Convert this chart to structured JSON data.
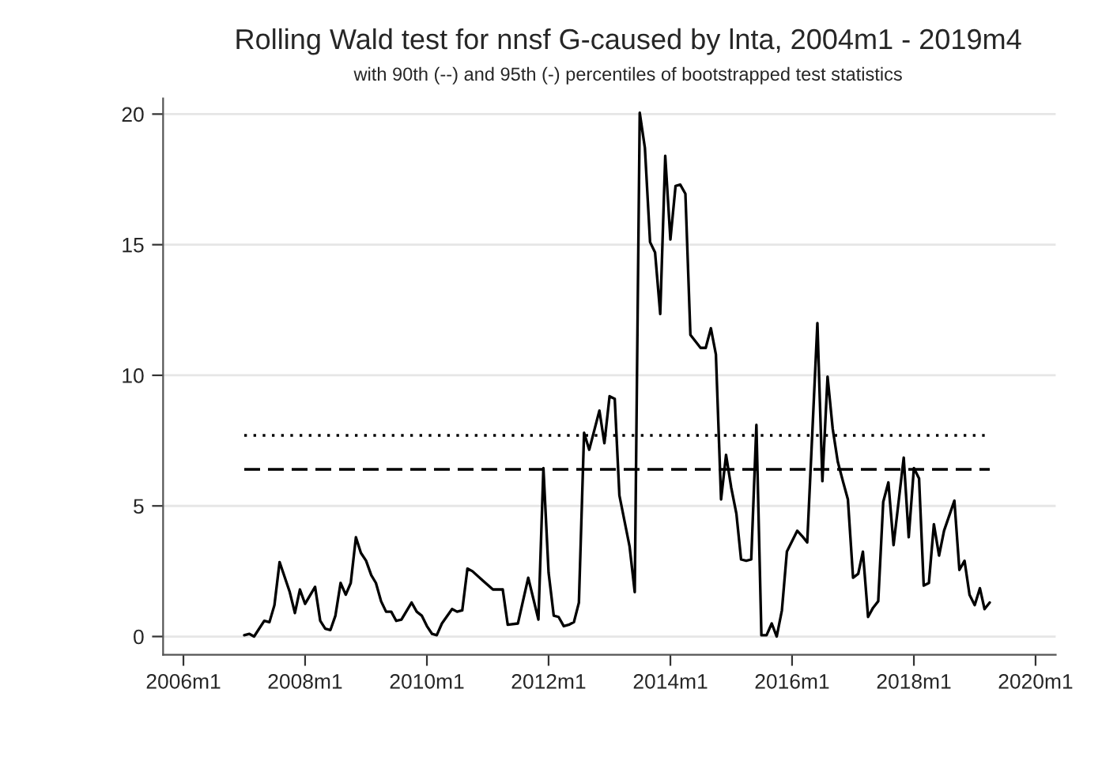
{
  "chart_data": {
    "type": "line",
    "title": "Rolling Wald test for nnsf G-caused by lnta, 2004m1 - 2019m4",
    "subtitle": "with 90th (--) and 95th (-) percentiles of bootstrapped test statistics",
    "x": [
      "2007-01",
      "2007-02",
      "2007-03",
      "2007-05",
      "2007-06",
      "2007-07",
      "2007-08",
      "2007-10",
      "2007-11",
      "2007-12",
      "2008-01",
      "2008-03",
      "2008-04",
      "2008-05",
      "2008-06",
      "2008-07",
      "2008-08",
      "2008-09",
      "2008-10",
      "2008-11",
      "2008-12",
      "2009-01",
      "2009-02",
      "2009-03",
      "2009-04",
      "2009-05",
      "2009-06",
      "2009-07",
      "2009-08",
      "2009-10",
      "2009-11",
      "2009-12",
      "2010-01",
      "2010-02",
      "2010-03",
      "2010-04",
      "2010-06",
      "2010-07",
      "2010-08",
      "2010-09",
      "2010-10",
      "2010-12",
      "2011-02",
      "2011-04",
      "2011-05",
      "2011-07",
      "2011-09",
      "2011-11",
      "2011-12",
      "2012-01",
      "2012-02",
      "2012-03",
      "2012-04",
      "2012-05",
      "2012-06",
      "2012-07",
      "2012-08",
      "2012-09",
      "2012-11",
      "2012-12",
      "2013-01",
      "2013-02",
      "2013-03",
      "2013-05",
      "2013-06",
      "2013-07",
      "2013-08",
      "2013-09",
      "2013-10",
      "2013-11",
      "2013-12",
      "2014-01",
      "2014-02",
      "2014-03",
      "2014-04",
      "2014-05",
      "2014-07",
      "2014-08",
      "2014-09",
      "2014-10",
      "2014-11",
      "2014-12",
      "2015-01",
      "2015-02",
      "2015-03",
      "2015-04",
      "2015-05",
      "2015-06",
      "2015-07",
      "2015-08",
      "2015-09",
      "2015-10",
      "2015-11",
      "2015-12",
      "2016-02",
      "2016-03",
      "2016-04",
      "2016-06",
      "2016-07",
      "2016-08",
      "2016-09",
      "2016-10",
      "2016-11",
      "2016-12",
      "2017-01",
      "2017-02",
      "2017-03",
      "2017-04",
      "2017-05",
      "2017-06",
      "2017-07",
      "2017-08",
      "2017-09",
      "2017-11",
      "2017-12",
      "2018-01",
      "2018-02",
      "2018-03",
      "2018-04",
      "2018-05",
      "2018-06",
      "2018-07",
      "2018-09",
      "2018-10",
      "2018-11",
      "2018-12",
      "2019-01",
      "2019-02",
      "2019-03",
      "2019-04"
    ],
    "series": [
      {
        "color": "#000000",
        "values": [
          0.05,
          0.1,
          0.0,
          0.6,
          0.55,
          1.2,
          2.85,
          1.7,
          0.9,
          1.8,
          1.25,
          1.9,
          0.6,
          0.3,
          0.25,
          0.8,
          2.05,
          1.6,
          2.05,
          3.8,
          3.2,
          2.9,
          2.35,
          2.05,
          1.35,
          0.95,
          0.95,
          0.6,
          0.65,
          1.3,
          0.95,
          0.8,
          0.4,
          0.1,
          0.05,
          0.5,
          1.05,
          0.95,
          1.0,
          2.6,
          2.5,
          2.15,
          1.8,
          1.8,
          0.45,
          0.5,
          2.25,
          0.65,
          6.45,
          2.45,
          0.8,
          0.75,
          0.4,
          0.45,
          0.55,
          1.3,
          7.8,
          7.15,
          8.65,
          7.4,
          9.2,
          9.1,
          5.4,
          3.45,
          1.7,
          20.05,
          18.7,
          15.1,
          14.7,
          12.35,
          18.4,
          15.2,
          17.25,
          17.3,
          16.95,
          11.55,
          11.05,
          11.05,
          11.8,
          10.8,
          5.25,
          6.95,
          5.7,
          4.7,
          2.95,
          2.9,
          2.95,
          8.1,
          0.05,
          0.05,
          0.5,
          0.0,
          1.0,
          3.25,
          4.05,
          3.85,
          3.6,
          12.0,
          5.95,
          9.95,
          7.95,
          6.7,
          5.95,
          5.25,
          2.25,
          2.4,
          3.25,
          0.75,
          1.1,
          1.35,
          5.15,
          5.9,
          3.5,
          6.85,
          3.8,
          6.45,
          6.05,
          1.95,
          2.05,
          4.3,
          3.1,
          4.05,
          5.2,
          2.55,
          2.9,
          1.6,
          1.2,
          1.85,
          1.05,
          1.3
        ]
      }
    ],
    "xlim": [
      "2005-09",
      "2020-05"
    ],
    "xticks": [
      {
        "value": "2006-01",
        "label": "2006m1"
      },
      {
        "value": "2008-01",
        "label": "2008m1"
      },
      {
        "value": "2010-01",
        "label": "2010m1"
      },
      {
        "value": "2012-01",
        "label": "2012m1"
      },
      {
        "value": "2014-01",
        "label": "2014m1"
      },
      {
        "value": "2016-01",
        "label": "2016m1"
      },
      {
        "value": "2018-01",
        "label": "2018m1"
      },
      {
        "value": "2020-01",
        "label": "2020m1"
      }
    ],
    "ylim": [
      -0.7,
      20.6
    ],
    "yticks": [
      0,
      5,
      10,
      15,
      20
    ],
    "grid": "y",
    "line_style": "solid",
    "ref_lines": [
      {
        "axis": "y",
        "value": 7.7,
        "color": "#000000",
        "line_style": "dotted"
      },
      {
        "axis": "y",
        "value": 6.4,
        "color": "#000000",
        "line_style": "dashed"
      }
    ]
  }
}
